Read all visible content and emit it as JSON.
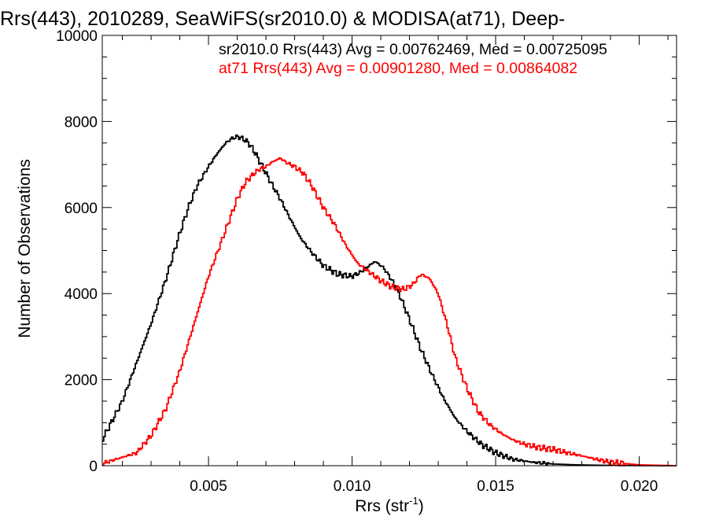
{
  "chart_data": {
    "type": "line",
    "title": "Rrs(443), 2010289, SeaWiFS(sr2010.0) & MODISA(at71), Deep-",
    "xlabel": "Rrs (str",
    "xlabel_sup": "-1",
    "xlabel_end": ")",
    "ylabel": "Number of Observations",
    "xlim": [
      0.0013,
      0.0213
    ],
    "ylim": [
      0,
      10000
    ],
    "x_ticks": [
      0.005,
      0.01,
      0.015,
      0.02
    ],
    "x_tick_labels": [
      "0.005",
      "0.010",
      "0.015",
      "0.020"
    ],
    "y_ticks": [
      0,
      2000,
      4000,
      6000,
      8000,
      10000
    ],
    "y_tick_labels": [
      "0",
      "2000",
      "4000",
      "6000",
      "8000",
      "10000"
    ],
    "grid": false,
    "legend_position": "top-right",
    "series": [
      {
        "name": "sr2010.0 Rrs(443) Avg = 0.00762469, Med = 0.00725095",
        "color": "#000000",
        "x": [
          0.0013,
          0.002,
          0.0025,
          0.003,
          0.0035,
          0.004,
          0.0043,
          0.0046,
          0.005,
          0.0053,
          0.0056,
          0.0058,
          0.006,
          0.0062,
          0.0064,
          0.0066,
          0.0068,
          0.007,
          0.0072,
          0.0075,
          0.0078,
          0.0082,
          0.0086,
          0.009,
          0.0095,
          0.01,
          0.0103,
          0.0106,
          0.0108,
          0.0111,
          0.0114,
          0.0117,
          0.012,
          0.0124,
          0.0128,
          0.0132,
          0.0136,
          0.014,
          0.0145,
          0.015,
          0.0156,
          0.0163,
          0.017,
          0.0178,
          0.0186,
          0.0195,
          0.0205,
          0.0213
        ],
        "y": [
          600,
          1500,
          2400,
          3300,
          4300,
          5400,
          6000,
          6500,
          6950,
          7250,
          7500,
          7600,
          7650,
          7600,
          7500,
          7300,
          7050,
          6800,
          6550,
          6200,
          5800,
          5300,
          4950,
          4650,
          4450,
          4400,
          4500,
          4650,
          4750,
          4600,
          4300,
          3900,
          3400,
          2700,
          2100,
          1550,
          1100,
          800,
          500,
          300,
          150,
          80,
          40,
          20,
          10,
          5,
          2,
          0
        ]
      },
      {
        "name": "at71 Rrs(443) Avg = 0.00901280, Med = 0.00864082",
        "color": "#ff0000",
        "x": [
          0.0013,
          0.0025,
          0.003,
          0.0035,
          0.004,
          0.0045,
          0.005,
          0.0055,
          0.006,
          0.0063,
          0.0066,
          0.0068,
          0.007,
          0.0072,
          0.0075,
          0.0077,
          0.008,
          0.0083,
          0.0086,
          0.009,
          0.0094,
          0.0098,
          0.0102,
          0.0106,
          0.011,
          0.0114,
          0.0118,
          0.0121,
          0.0124,
          0.0127,
          0.013,
          0.0133,
          0.0136,
          0.014,
          0.0144,
          0.0148,
          0.0152,
          0.0156,
          0.016,
          0.0165,
          0.017,
          0.0175,
          0.018,
          0.0185,
          0.019,
          0.02,
          0.0213
        ],
        "y": [
          50,
          300,
          700,
          1300,
          2200,
          3300,
          4400,
          5300,
          6200,
          6600,
          6800,
          6900,
          6950,
          7050,
          7150,
          7050,
          6950,
          6800,
          6500,
          6000,
          5600,
          5100,
          4700,
          4500,
          4300,
          4150,
          4100,
          4200,
          4450,
          4350,
          4000,
          3300,
          2500,
          1800,
          1250,
          950,
          750,
          600,
          500,
          420,
          380,
          300,
          230,
          150,
          80,
          20,
          0
        ]
      }
    ]
  }
}
